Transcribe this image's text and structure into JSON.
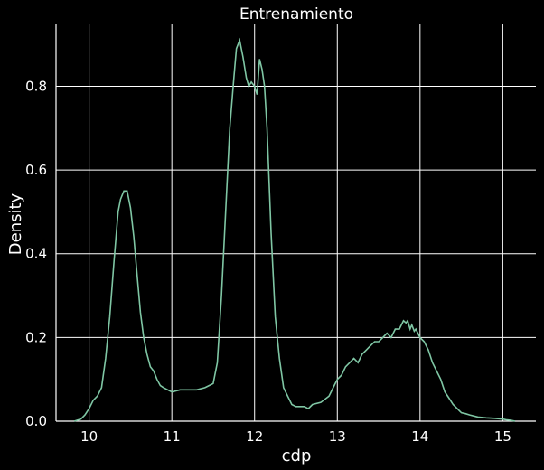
{
  "chart_data": {
    "type": "line",
    "title": "Entrenamiento",
    "xlabel": "cdp",
    "ylabel": "Density",
    "xlim": [
      9.6,
      15.4
    ],
    "ylim": [
      0.0,
      0.95
    ],
    "xticks": [
      10,
      11,
      12,
      13,
      14,
      15
    ],
    "xtick_labels": [
      "10",
      "11",
      "12",
      "13",
      "14",
      "15"
    ],
    "yticks": [
      0.0,
      0.2,
      0.4,
      0.6,
      0.8
    ],
    "ytick_labels": [
      "0.0",
      "0.2",
      "0.4",
      "0.6",
      "0.8"
    ],
    "grid": true,
    "line_color": "#7fc6a4",
    "background": "#000000",
    "grid_color": "#ffffff",
    "series": [
      {
        "x": [
          9.82,
          9.9,
          9.95,
          10.0,
          10.05,
          10.1,
          10.15,
          10.2,
          10.25,
          10.3,
          10.35,
          10.38,
          10.42,
          10.46,
          10.5,
          10.54,
          10.58,
          10.62,
          10.66,
          10.7,
          10.74,
          10.78,
          10.82,
          10.86,
          10.9,
          10.95,
          11.0,
          11.1,
          11.2,
          11.3,
          11.4,
          11.5,
          11.55,
          11.6,
          11.65,
          11.7,
          11.75,
          11.78,
          11.82,
          11.86,
          11.9,
          11.93,
          11.96,
          12.0,
          12.03,
          12.06,
          12.09,
          12.12,
          12.15,
          12.2,
          12.25,
          12.3,
          12.35,
          12.4,
          12.45,
          12.5,
          12.6,
          12.65,
          12.7,
          12.8,
          12.9,
          12.95,
          13.0,
          13.05,
          13.1,
          13.15,
          13.2,
          13.25,
          13.3,
          13.35,
          13.4,
          13.45,
          13.5,
          13.55,
          13.6,
          13.65,
          13.7,
          13.75,
          13.8,
          13.83,
          13.85,
          13.88,
          13.9,
          13.93,
          13.95,
          14.0,
          14.05,
          14.1,
          14.15,
          14.2,
          14.25,
          14.3,
          14.35,
          14.4,
          14.45,
          14.5,
          14.55,
          14.6,
          14.7,
          14.8,
          14.9,
          15.0,
          15.05,
          15.1,
          15.15
        ],
        "y": [
          0.0,
          0.005,
          0.015,
          0.03,
          0.05,
          0.06,
          0.08,
          0.15,
          0.25,
          0.38,
          0.5,
          0.53,
          0.55,
          0.55,
          0.51,
          0.44,
          0.35,
          0.26,
          0.2,
          0.16,
          0.13,
          0.12,
          0.1,
          0.085,
          0.08,
          0.075,
          0.07,
          0.075,
          0.075,
          0.075,
          0.08,
          0.09,
          0.14,
          0.3,
          0.5,
          0.7,
          0.82,
          0.89,
          0.91,
          0.87,
          0.82,
          0.8,
          0.81,
          0.8,
          0.78,
          0.865,
          0.84,
          0.8,
          0.7,
          0.45,
          0.25,
          0.15,
          0.08,
          0.06,
          0.04,
          0.035,
          0.035,
          0.03,
          0.04,
          0.045,
          0.06,
          0.08,
          0.1,
          0.11,
          0.13,
          0.14,
          0.15,
          0.14,
          0.16,
          0.17,
          0.18,
          0.19,
          0.19,
          0.2,
          0.21,
          0.2,
          0.22,
          0.22,
          0.24,
          0.235,
          0.24,
          0.22,
          0.23,
          0.215,
          0.22,
          0.2,
          0.19,
          0.17,
          0.14,
          0.12,
          0.1,
          0.07,
          0.055,
          0.04,
          0.03,
          0.02,
          0.018,
          0.015,
          0.01,
          0.008,
          0.007,
          0.005,
          0.003,
          0.002,
          0.0
        ]
      }
    ]
  }
}
